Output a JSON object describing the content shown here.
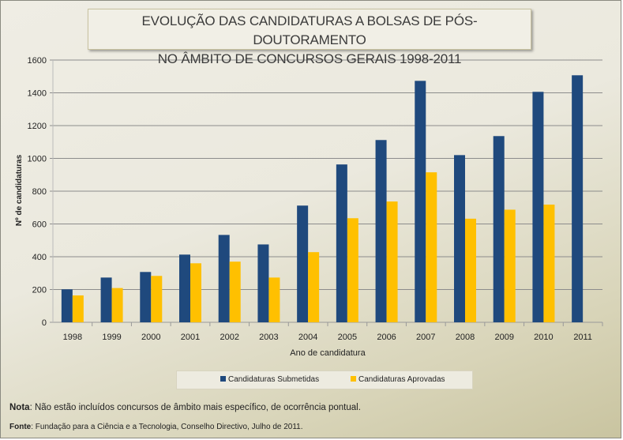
{
  "chart_data": {
    "type": "bar",
    "title": [
      "EVOLUÇÃO DAS CANDIDATURAS A BOLSAS DE PÓS-DOUTORAMENTO",
      "NO ÂMBITO DE CONCURSOS GERAIS 1998-2011"
    ],
    "xlabel": "Ano de candidatura",
    "ylabel": "Nº de candidaturas",
    "ylim": [
      0,
      1600
    ],
    "yticks": [
      0,
      200,
      400,
      600,
      800,
      1000,
      1200,
      1400,
      1600
    ],
    "grid": true,
    "legend": "bottom",
    "categories": [
      "1998",
      "1999",
      "2000",
      "2001",
      "2002",
      "2003",
      "2004",
      "2005",
      "2006",
      "2007",
      "2008",
      "2009",
      "2010",
      "2011"
    ],
    "series": [
      {
        "name": "Candidaturas Submetidas",
        "color": "#1f497d",
        "values": [
          201,
          273,
          307,
          413,
          533,
          475,
          712,
          963,
          1112,
          1473,
          1020,
          1136,
          1406,
          1507
        ]
      },
      {
        "name": "Candidaturas Aprovadas",
        "color": "#ffc000",
        "values": [
          164,
          209,
          283,
          360,
          370,
          273,
          428,
          635,
          737,
          915,
          632,
          687,
          718,
          null
        ]
      }
    ]
  },
  "notes": {
    "nota_label": "Nota",
    "nota_text": ": Não estão incluídos concursos de âmbito mais específico, de ocorrência pontual.",
    "fonte_label": "Fonte",
    "fonte_text": ": Fundação para a Ciência e a Tecnologia, Conselho Directivo, Julho de 2011."
  }
}
